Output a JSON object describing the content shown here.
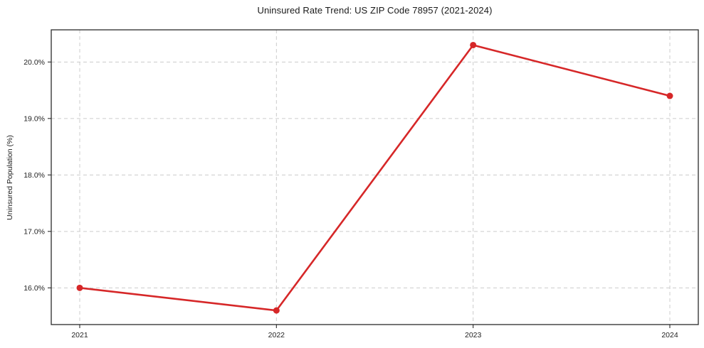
{
  "chart_data": {
    "type": "line",
    "title": "Uninsured Rate Trend: US ZIP Code 78957 (2021-2024)",
    "xlabel": "",
    "ylabel": "Uninsured Population (%)",
    "categories": [
      "2021",
      "2022",
      "2023",
      "2024"
    ],
    "values": [
      16.0,
      15.6,
      20.3,
      19.4
    ],
    "yticks": [
      16.0,
      17.0,
      18.0,
      19.0,
      20.0
    ],
    "ytick_labels": [
      "16.0%",
      "17.0%",
      "18.0%",
      "19.0%",
      "20.0%"
    ],
    "ylim": [
      15.35,
      20.57
    ],
    "grid": true,
    "grid_style": "dashed",
    "grid_color": "#cccccc",
    "legend": "none",
    "line_color": "#d62728",
    "marker": "circle",
    "marker_color": "#d62728",
    "background_color": "#ffffff"
  }
}
